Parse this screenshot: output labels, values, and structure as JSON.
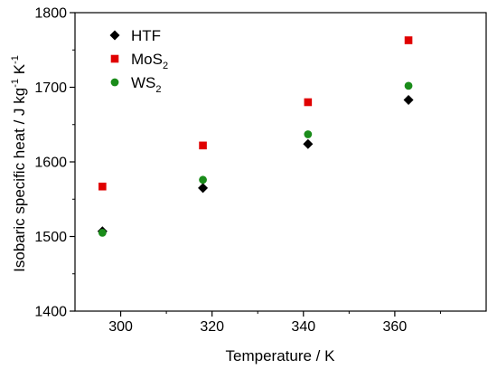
{
  "chart_data": {
    "type": "scatter",
    "title": "",
    "xlabel": "Temperature / K",
    "ylabel_parts": {
      "main": "Isobaric specific heat / J kg",
      "sup1": "-1",
      "mid": " K",
      "sup2": "-1"
    },
    "xlim": [
      290,
      380
    ],
    "ylim": [
      1400,
      1800
    ],
    "xticks": [
      300,
      320,
      340,
      360
    ],
    "yticks": [
      1400,
      1500,
      1600,
      1700,
      1800
    ],
    "legend_position": "top-left",
    "series": [
      {
        "name": "HTF",
        "name_parts": {
          "base": "HTF",
          "sub": ""
        },
        "marker": "diamond",
        "color": "#000000",
        "x": [
          296,
          318,
          341,
          363
        ],
        "y": [
          1507,
          1565,
          1624,
          1683
        ]
      },
      {
        "name": "MoS2",
        "name_parts": {
          "base": "MoS",
          "sub": "2"
        },
        "marker": "square",
        "color": "#e00000",
        "x": [
          296,
          318,
          341,
          363
        ],
        "y": [
          1567,
          1622,
          1680,
          1763
        ]
      },
      {
        "name": "WS2",
        "name_parts": {
          "base": "WS",
          "sub": "2"
        },
        "marker": "circle",
        "color": "#1a8c1a",
        "x": [
          296,
          318,
          341,
          363
        ],
        "y": [
          1505,
          1576,
          1637,
          1702
        ]
      }
    ]
  }
}
